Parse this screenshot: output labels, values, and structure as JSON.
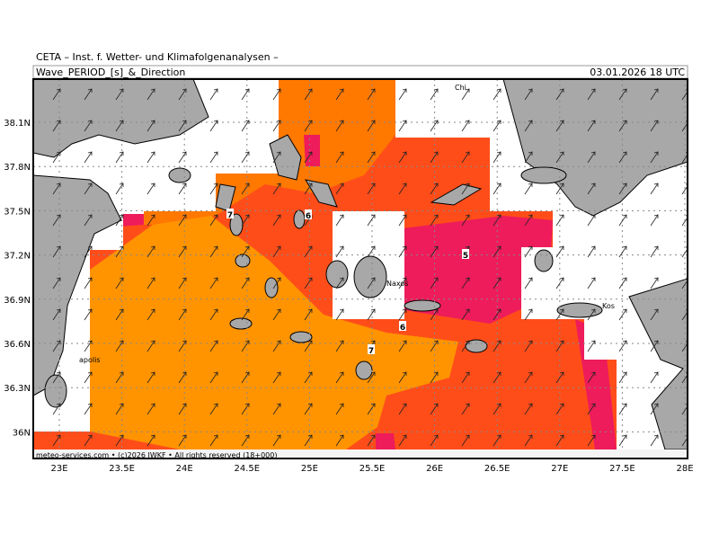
{
  "header": {
    "title": "CETA – Inst. f. Wetter- und Klimafolgenanalysen –",
    "parameter": "Wave_PERIOD_[s]_&_Direction",
    "datetime": "03.01.2026 18 UTC"
  },
  "map": {
    "lon_labels": [
      "23E",
      "23.5E",
      "24E",
      "24.5E",
      "25E",
      "25.5E",
      "26E",
      "26.5E",
      "27E",
      "27.5E",
      "28E"
    ],
    "lat_labels": [
      "38.1N",
      "37.8N",
      "37.5N",
      "37.2N",
      "36.9N",
      "36.6N",
      "36.3N",
      "36N"
    ],
    "contour_labels": [
      "7",
      "6",
      "5",
      "6",
      "7"
    ],
    "place_labels": [
      "Chi",
      "Naxos",
      "Kos",
      "apolis"
    ],
    "footer": "meteo-services.com • (c)2026 IWKF • All rights reserved (18+000)"
  }
}
